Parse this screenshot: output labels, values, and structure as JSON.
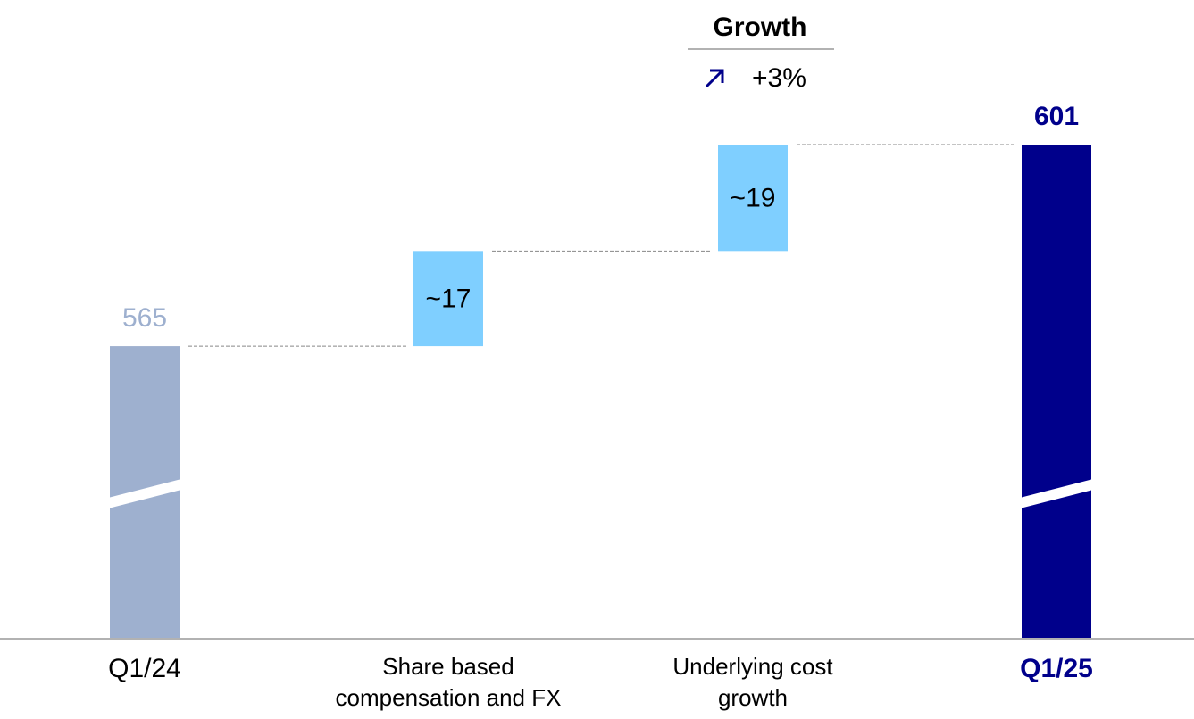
{
  "chart_data": {
    "type": "waterfall",
    "categories": [
      "Q1/24",
      "Share based compensation and FX",
      "Underlying cost growth",
      "Q1/25"
    ],
    "values": [
      565,
      17,
      19,
      601
    ],
    "value_labels": [
      "565",
      "~17",
      "~19",
      "601"
    ],
    "totals": [
      true,
      false,
      false,
      true
    ],
    "emphasis": [
      false,
      false,
      false,
      true
    ],
    "colors": [
      "#9eb0cf",
      "#7fcfff",
      "#7fcfff",
      "#00008b"
    ],
    "growth": {
      "title": "Growth",
      "text": "+3%"
    }
  }
}
